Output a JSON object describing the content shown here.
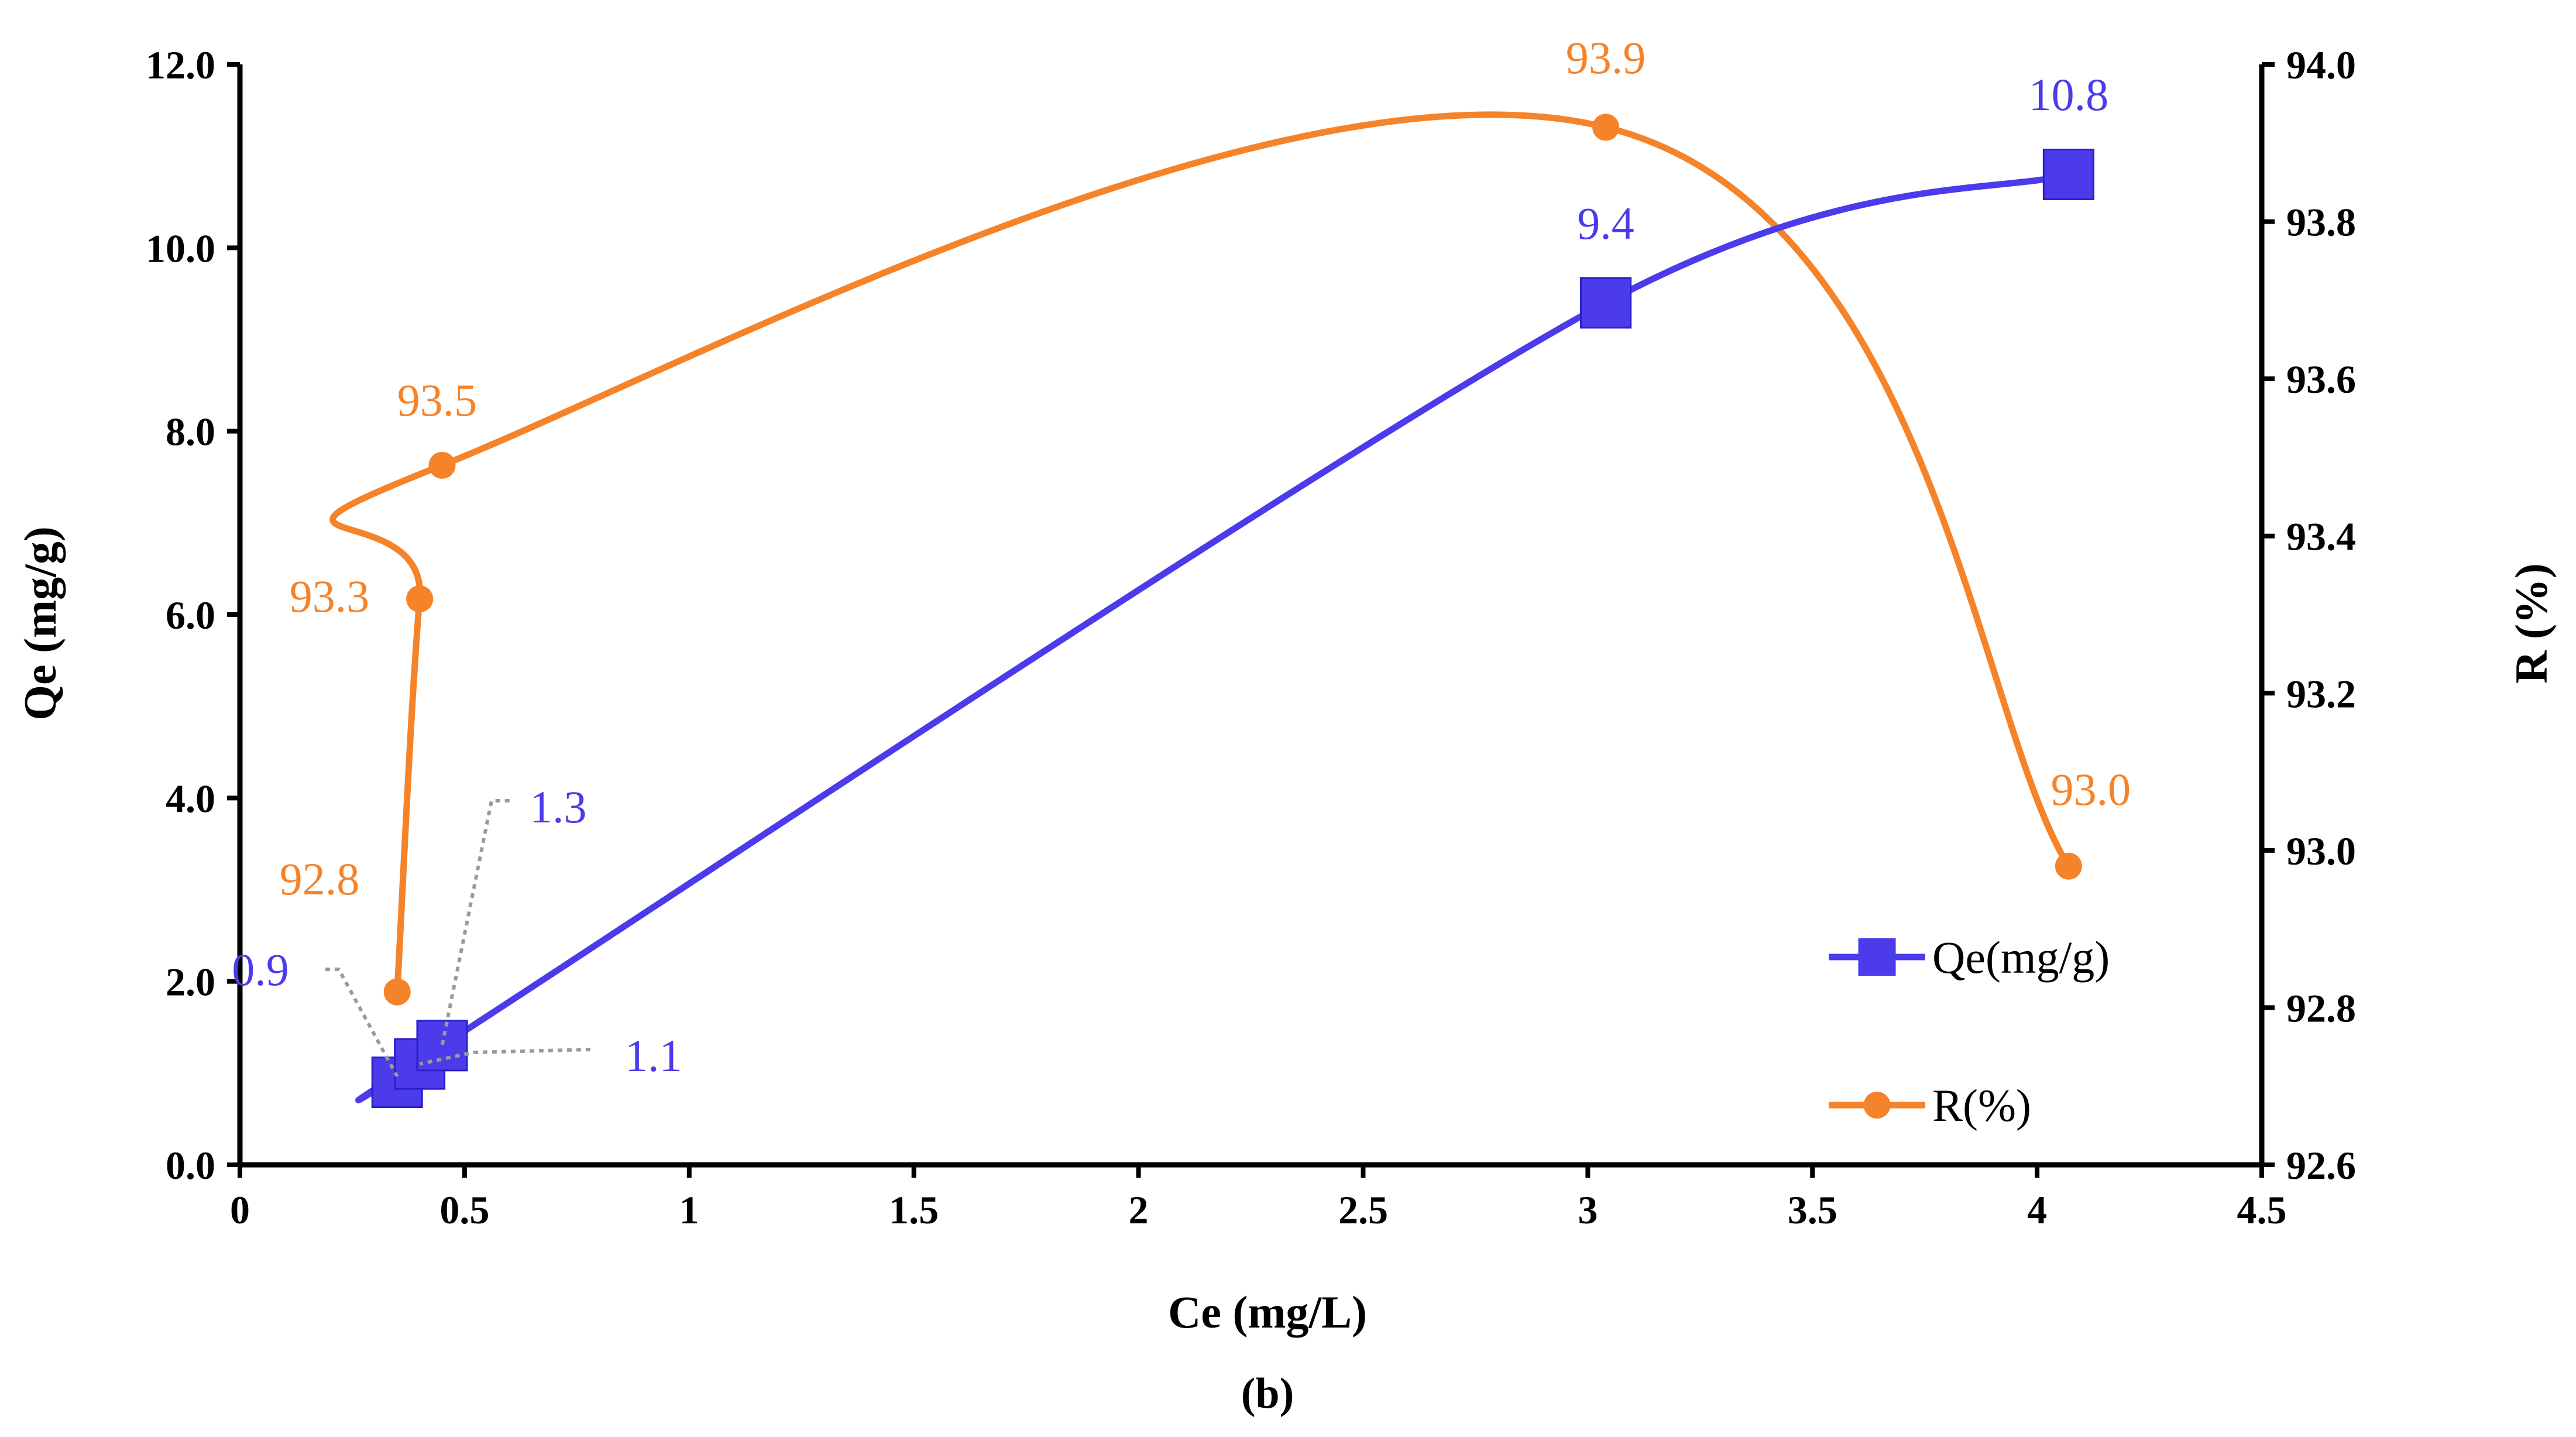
{
  "chart_data": {
    "type": "line",
    "caption": "(b)",
    "xlabel": "Ce (mg/L)",
    "ylabel": "Qe (mg/g)",
    "y2label": "R (%)",
    "xlim": [
      0,
      4.5
    ],
    "ylim": [
      0,
      12
    ],
    "y2lim": [
      92.6,
      94
    ],
    "x_ticks": [
      0,
      0.5,
      1,
      1.5,
      2,
      2.5,
      3,
      3.5,
      4,
      4.5
    ],
    "x_tick_labels": [
      "0",
      "0.5",
      "1",
      "1.5",
      "2",
      "2.5",
      "3",
      "3.5",
      "4",
      "4.5"
    ],
    "y_ticks": [
      0,
      2,
      4,
      6,
      8,
      10,
      12
    ],
    "y_tick_labels": [
      "0.0",
      "2.0",
      "4.0",
      "6.0",
      "8.0",
      "10.0",
      "12.0"
    ],
    "y2_ticks": [
      92.6,
      92.8,
      93.0,
      93.2,
      93.4,
      93.6,
      93.8,
      94.0
    ],
    "y2_tick_labels": [
      "92.6",
      "92.8",
      "93.0",
      "93.2",
      "93.4",
      "93.6",
      "93.8",
      "94.0"
    ],
    "series": [
      {
        "name": "Qe(mg/g)",
        "axis": "left",
        "color": "#4B3BEB",
        "marker": "square",
        "x": [
          0.35,
          0.4,
          0.45,
          3.04,
          4.07
        ],
        "y": [
          0.9,
          1.1,
          1.3,
          9.4,
          10.8
        ],
        "labels": [
          "0.9",
          "1.1",
          "1.3",
          "9.4",
          "10.8"
        ]
      },
      {
        "name": "R(%)",
        "axis": "right",
        "color": "#F5832A",
        "marker": "circle",
        "x": [
          0.35,
          0.4,
          0.45,
          3.04,
          4.07
        ],
        "y": [
          92.82,
          93.32,
          93.49,
          93.92,
          92.98
        ],
        "labels": [
          "92.8",
          "93.3",
          "93.5",
          "93.9",
          "93.0"
        ]
      }
    ],
    "legend": [
      "Qe(mg/g)",
      "R(%)"
    ],
    "legend_position": "right-bottom",
    "grid": false
  }
}
